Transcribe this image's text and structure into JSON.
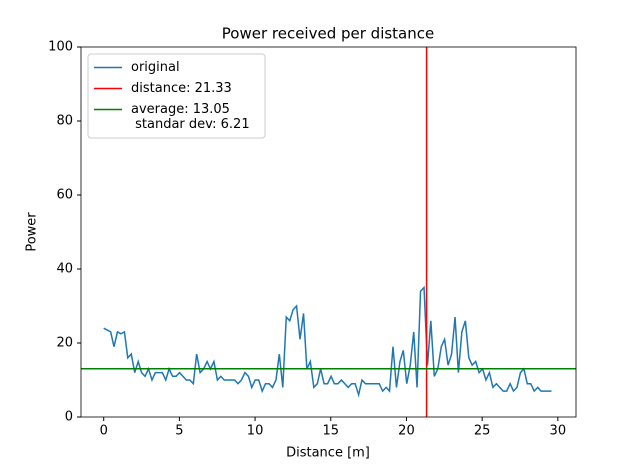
{
  "chart_data": {
    "type": "line",
    "title": "Power received per distance",
    "xlabel": "Distance [m]",
    "ylabel": "Power",
    "xlim": [
      -1.5,
      31.2
    ],
    "ylim": [
      0,
      100
    ],
    "xticks": [
      0,
      5,
      10,
      15,
      20,
      25,
      30
    ],
    "yticks": [
      0,
      20,
      40,
      60,
      80,
      100
    ],
    "legend": "upper left",
    "series": [
      {
        "name": "original",
        "color": "#1f77b4",
        "x": [
          0,
          0.23,
          0.46,
          0.68,
          0.91,
          1.14,
          1.37,
          1.59,
          1.82,
          2.05,
          2.28,
          2.5,
          2.73,
          2.96,
          3.19,
          3.41,
          3.64,
          3.87,
          4.1,
          4.32,
          4.55,
          4.78,
          5.01,
          5.23,
          5.46,
          5.69,
          5.92,
          6.14,
          6.37,
          6.6,
          6.83,
          7.05,
          7.28,
          7.51,
          7.74,
          7.96,
          8.19,
          8.42,
          8.65,
          8.87,
          9.1,
          9.33,
          9.56,
          9.78,
          10.01,
          10.24,
          10.47,
          10.69,
          10.92,
          11.15,
          11.38,
          11.6,
          11.83,
          12.06,
          12.29,
          12.51,
          12.74,
          12.97,
          13.2,
          13.42,
          13.65,
          13.88,
          14.11,
          14.33,
          14.56,
          14.79,
          15.02,
          15.24,
          15.47,
          15.7,
          15.93,
          16.15,
          16.38,
          16.61,
          16.84,
          17.06,
          17.29,
          17.52,
          17.75,
          17.97,
          18.2,
          18.43,
          18.66,
          18.88,
          19.11,
          19.34,
          19.57,
          19.79,
          20.02,
          20.25,
          20.48,
          20.7,
          20.93,
          21.16,
          21.39,
          21.61,
          21.84,
          22.07,
          22.3,
          22.52,
          22.75,
          22.98,
          23.21,
          23.43,
          23.66,
          23.89,
          24.12,
          24.34,
          24.57,
          24.8,
          25.03,
          25.25,
          25.48,
          25.71,
          25.94,
          26.16,
          26.39,
          26.62,
          26.85,
          27.07,
          27.3,
          27.53,
          27.76,
          27.98,
          28.21,
          28.44,
          28.67,
          28.89,
          29.12,
          29.35,
          29.58
        ],
        "values": [
          24,
          23.5,
          23,
          19,
          23,
          22.5,
          23,
          16,
          17,
          12,
          15,
          12,
          11,
          13,
          10,
          12,
          12,
          12,
          10,
          13,
          11,
          11,
          12,
          11,
          10,
          10,
          9,
          17,
          12,
          13,
          15,
          13,
          15,
          10,
          11,
          10,
          10,
          10,
          10,
          9,
          10,
          12,
          11,
          8,
          10,
          10,
          7,
          9,
          9,
          8,
          10,
          17,
          8,
          27,
          26,
          29,
          30,
          21,
          28,
          13,
          15,
          8,
          9,
          13,
          9,
          9,
          11,
          9,
          9,
          10,
          9,
          8,
          9,
          9,
          6,
          10,
          9,
          9,
          9,
          9,
          9,
          7,
          8,
          7,
          19,
          8,
          15,
          18,
          9,
          14,
          23,
          8,
          34,
          35,
          14,
          26,
          11,
          13,
          19,
          21,
          14,
          17,
          27,
          12,
          23,
          26,
          16,
          14,
          15,
          12,
          13,
          10,
          12,
          8,
          9,
          8,
          7,
          7,
          9,
          7,
          8,
          12,
          13,
          9,
          9,
          7,
          8,
          7,
          7,
          7,
          7
        ]
      }
    ],
    "vlines": [
      {
        "name": "distance: 21.33",
        "x": 21.33,
        "color": "#ff0000"
      }
    ],
    "hlines": [
      {
        "name": "average: 13.05\n standar dev: 6.21",
        "y": 13.05,
        "color": "#008000"
      }
    ]
  }
}
